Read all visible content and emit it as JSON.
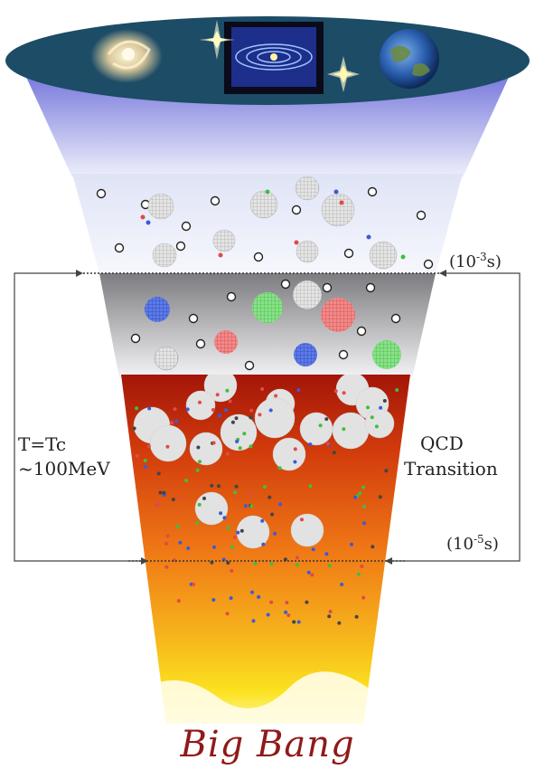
{
  "labels": {
    "temperature_line1": "T=Tc",
    "temperature_line2": "~100MeV",
    "transition_line1": "QCD",
    "transition_line2": "Transition",
    "time_top_base": "(10",
    "time_top_exp": "-3",
    "time_top_unit": "s)",
    "time_bottom_base": "(10",
    "time_bottom_exp": "-5",
    "time_bottom_unit": "s)",
    "origin": "Big Bang"
  },
  "colors": {
    "cap": "#1c4c66",
    "particle_red": "#e04a4a",
    "particle_green": "#3fbf3f",
    "particle_blue": "#3c5ad8",
    "bigbang_text": "#8f1a1a"
  },
  "icons": [
    "galaxy-icon",
    "solar-system-icon",
    "earth-icon",
    "sparkle-star-icon"
  ]
}
